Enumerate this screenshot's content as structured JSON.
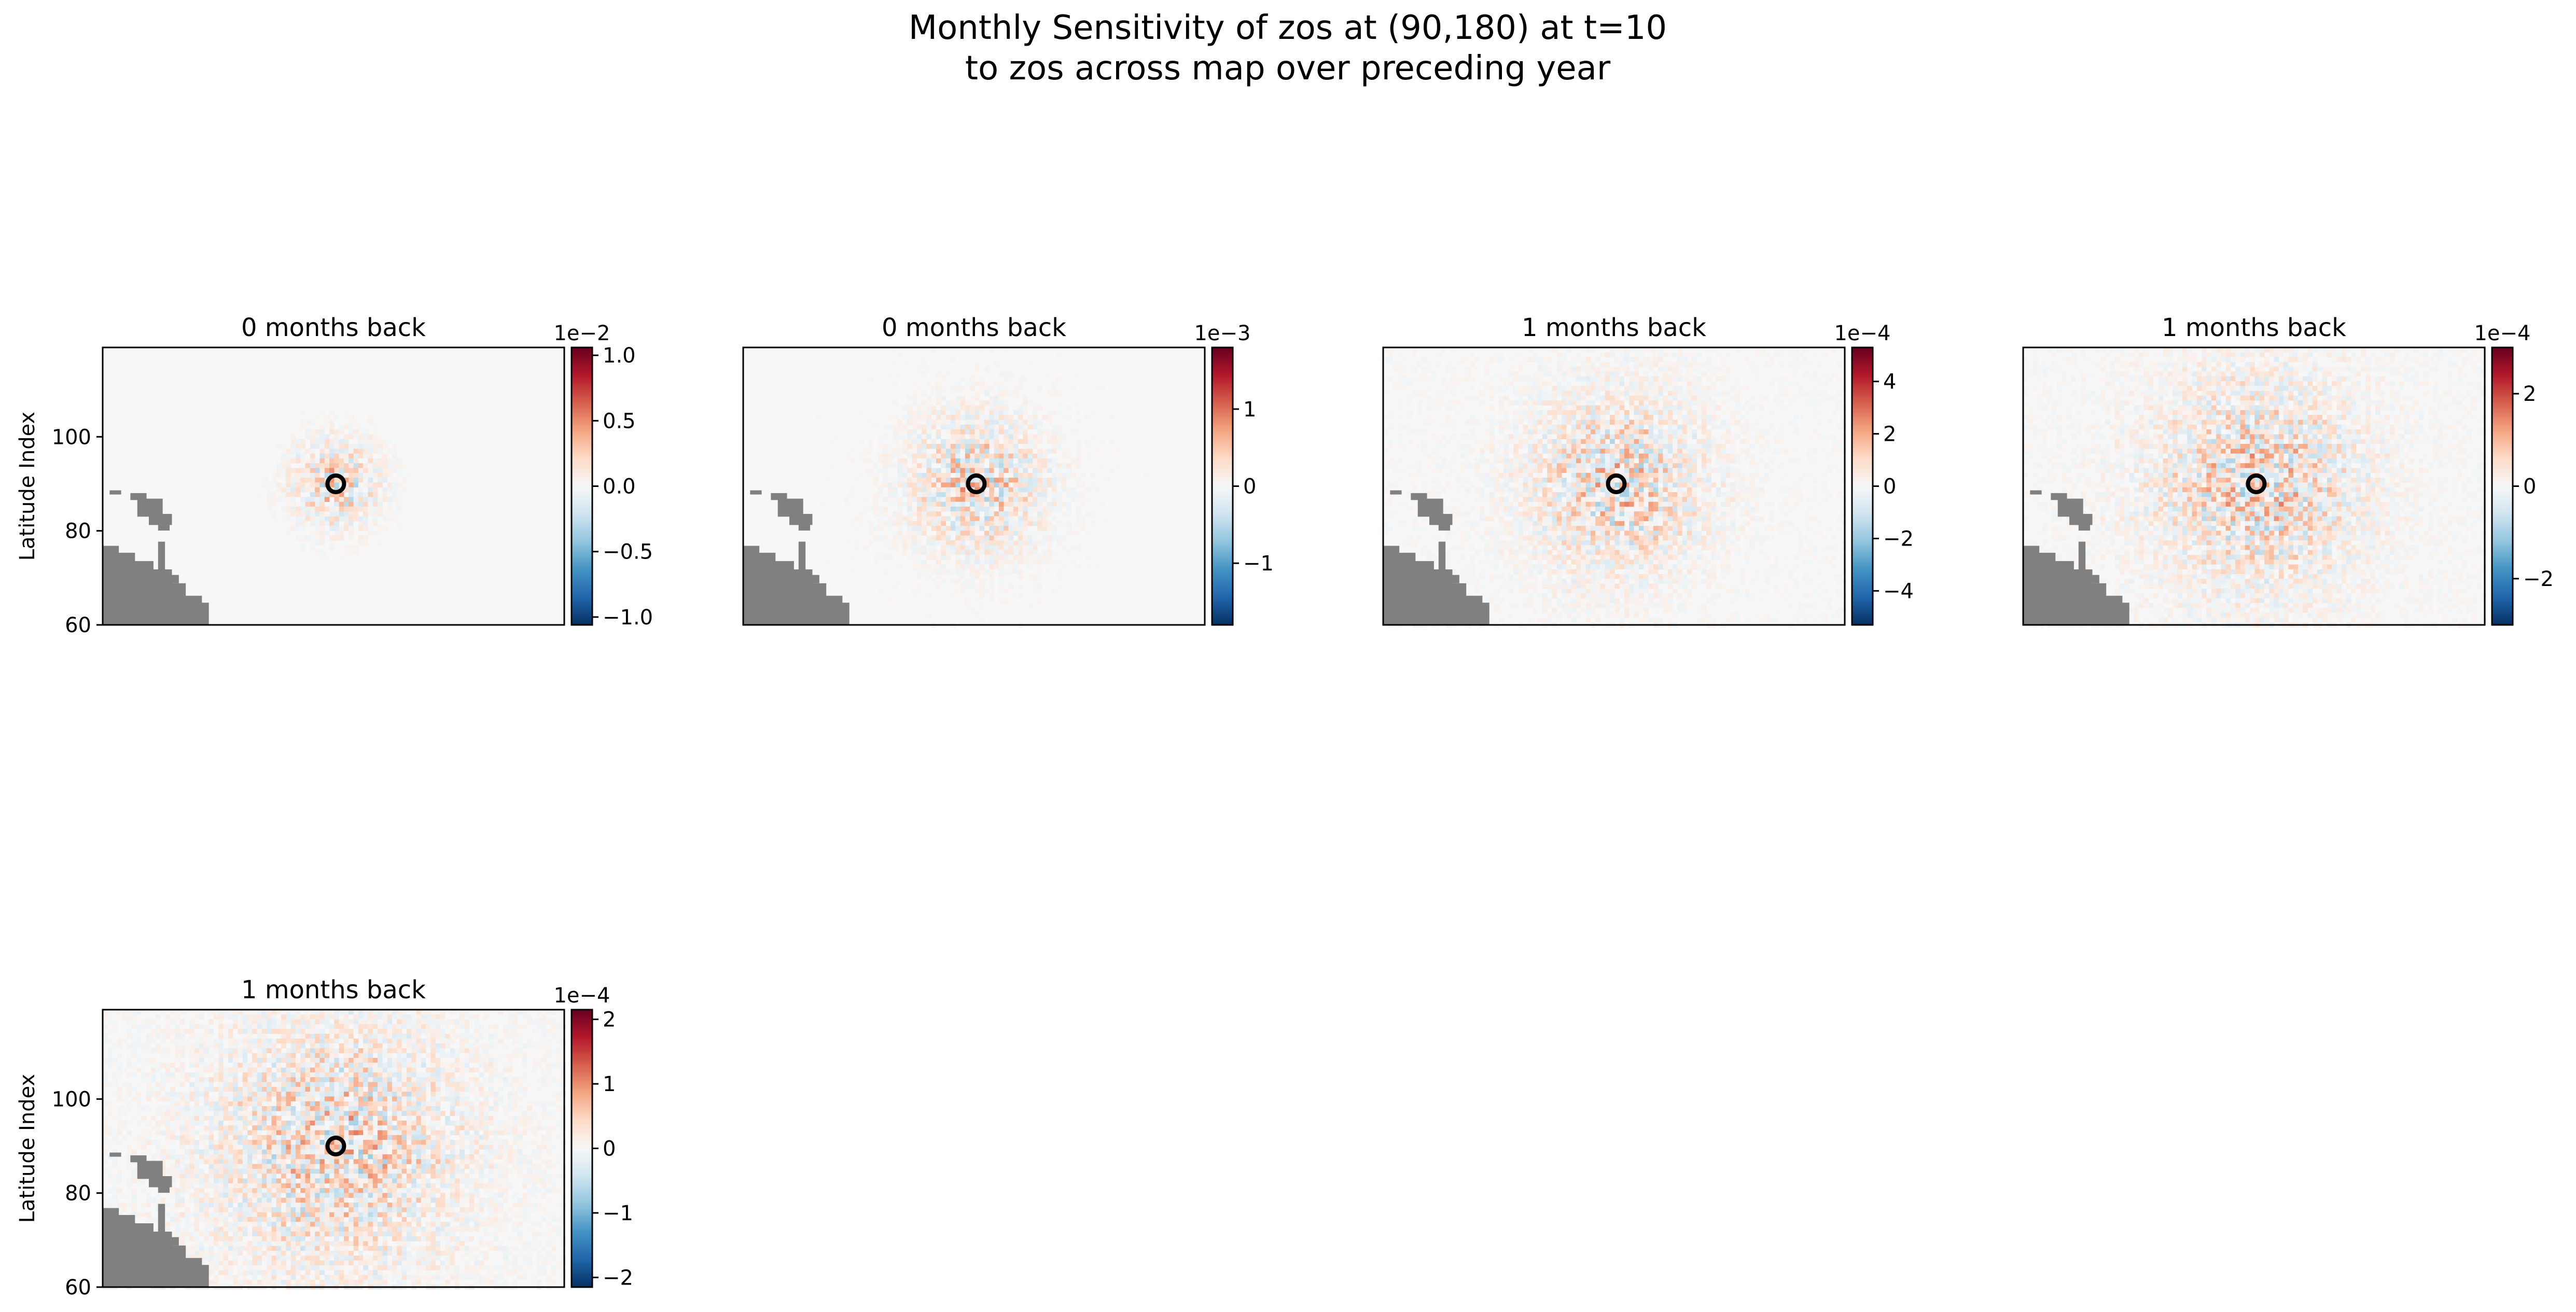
{
  "figure": {
    "title_line1": "Monthly Sensitivity of zos at (90,180) at t=10",
    "title_line2": "to zos across map over preceding year"
  },
  "colors": {
    "land": "#808080",
    "ocean_base": "#f7f7f7",
    "positive": "#b2182b",
    "negative": "#2166ac",
    "marker": "#000000"
  },
  "chart_data": [
    {
      "type": "heatmap",
      "title": "0 months back",
      "ylabel": "Latitude Index",
      "ylim": [
        60,
        119
      ],
      "yticks": [
        60,
        80,
        100
      ],
      "target": {
        "lat": 90,
        "x_frac": 0.505
      },
      "colorbar": {
        "exponent_label": "1e−2",
        "range": [
          -1.06,
          1.06
        ],
        "ticks": [
          -1.0,
          -0.5,
          0.0,
          0.5,
          1.0
        ],
        "tick_labels": [
          "−1.0",
          "−0.5",
          "0.0",
          "0.5",
          "1.0"
        ]
      },
      "spread": 0.4
    },
    {
      "type": "heatmap",
      "title": "0 months back",
      "ylabel": "",
      "ylim": [
        60,
        119
      ],
      "yticks": [],
      "target": {
        "lat": 90,
        "x_frac": 0.505
      },
      "colorbar": {
        "exponent_label": "1e−3",
        "range": [
          -1.8,
          1.8
        ],
        "ticks": [
          -1,
          0,
          1
        ],
        "tick_labels": [
          "−1",
          "0",
          "1"
        ]
      },
      "spread": 0.8
    },
    {
      "type": "heatmap",
      "title": "1 months back",
      "ylabel": "",
      "ylim": [
        60,
        119
      ],
      "yticks": [],
      "target": {
        "lat": 90,
        "x_frac": 0.505
      },
      "colorbar": {
        "exponent_label": "1e−4",
        "range": [
          -5.3,
          5.3
        ],
        "ticks": [
          -4,
          -2,
          0,
          2,
          4
        ],
        "tick_labels": [
          "−4",
          "−2",
          "0",
          "2",
          "4"
        ]
      },
      "spread": 1.2
    },
    {
      "type": "heatmap",
      "title": "1 months back",
      "ylabel": "",
      "ylim": [
        60,
        119
      ],
      "yticks": [],
      "target": {
        "lat": 90,
        "x_frac": 0.505
      },
      "colorbar": {
        "exponent_label": "1e−4",
        "range": [
          -3.0,
          3.0
        ],
        "ticks": [
          -2,
          0,
          2
        ],
        "tick_labels": [
          "−2",
          "0",
          "2"
        ]
      },
      "spread": 1.5
    },
    {
      "type": "heatmap",
      "title": "1 months back",
      "ylabel": "Latitude Index",
      "ylim": [
        60,
        119
      ],
      "yticks": [
        60,
        80,
        100,
        120
      ],
      "ytick_labels": [
        "60",
        "80",
        "100",
        ""
      ],
      "target": {
        "lat": 90,
        "x_frac": 0.505
      },
      "colorbar": {
        "exponent_label": "1e−4",
        "range": [
          -2.15,
          2.15
        ],
        "ticks": [
          -2,
          -1,
          0,
          1,
          2
        ],
        "tick_labels": [
          "−2",
          "−1",
          "0",
          "1",
          "2"
        ]
      },
      "spread": 1.8
    }
  ]
}
